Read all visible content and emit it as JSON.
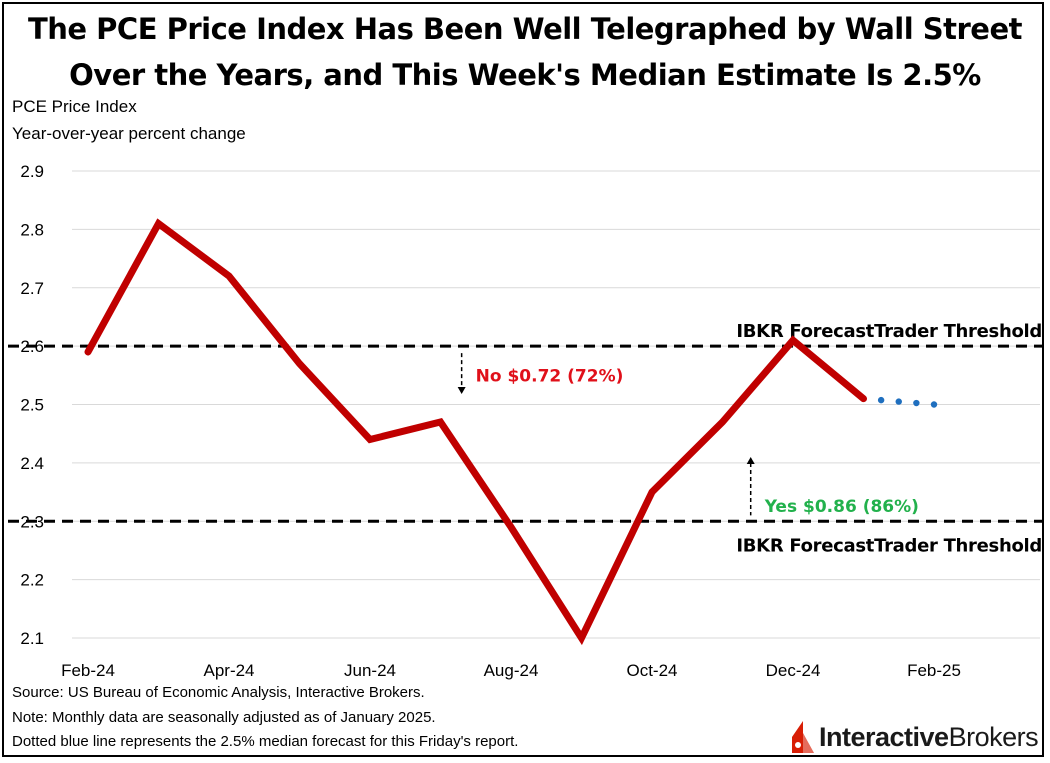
{
  "title_line1": "The PCE Price Index Has Been Well Telegraphed by Wall Street",
  "title_line2": "Over the Years, and This Week's Median Estimate Is 2.5%",
  "subtitle_line1": "PCE Price Index",
  "subtitle_line2": "Year-over-year percent change",
  "notes": {
    "source": "Source: US Bureau of Economic Analysis, Interactive Brokers.",
    "note": "Note: Monthly data are seasonally adjusted as of January 2025.",
    "dotted": "Dotted blue line represents the 2.5% median forecast for this Friday's report."
  },
  "logo": {
    "part1": "Interactive",
    "part2": "Brokers"
  },
  "colors": {
    "actual_line": "#c00000",
    "forecast_dots": "#1f6fbf",
    "no_label": "#e0101a",
    "yes_label": "#22b14c",
    "grid": "#d9d9d9",
    "logo_icon": "#d81e05"
  },
  "chart_data": {
    "type": "line",
    "ylim": [
      2.1,
      2.9
    ],
    "yticks": [
      "2.1",
      "2.2",
      "2.3",
      "2.4",
      "2.5",
      "2.6",
      "2.7",
      "2.8",
      "2.9"
    ],
    "ytick_values": [
      2.1,
      2.2,
      2.3,
      2.4,
      2.5,
      2.6,
      2.7,
      2.8,
      2.9
    ],
    "xtick_labels": [
      "Feb-24",
      "Apr-24",
      "Jun-24",
      "Aug-24",
      "Oct-24",
      "Dec-24",
      "Feb-25"
    ],
    "xtick_month_index": [
      0,
      2,
      4,
      6,
      8,
      10,
      12
    ],
    "series": [
      {
        "name": "PCE Price Index (actual)",
        "style": "solid",
        "x": [
          0,
          1,
          2,
          3,
          4,
          5,
          6,
          7,
          8,
          9,
          10,
          11
        ],
        "values": [
          2.59,
          2.81,
          2.72,
          2.57,
          2.44,
          2.47,
          2.29,
          2.1,
          2.35,
          2.47,
          2.61,
          2.51
        ]
      },
      {
        "name": "Median forecast",
        "style": "dotted",
        "x": [
          11,
          12
        ],
        "values": [
          2.51,
          2.5
        ]
      }
    ],
    "thresholds": [
      {
        "value": 2.6,
        "label": "IBKR ForecastTrader Threshold",
        "position": "above"
      },
      {
        "value": 2.3,
        "label": "IBKR ForecastTrader Threshold",
        "position": "below"
      }
    ],
    "annotations": [
      {
        "text": "No $0.72 (72%)",
        "kind": "no",
        "x": 5.4,
        "y": 2.565,
        "arrow": "down"
      },
      {
        "text": "Yes $0.86 (86%)",
        "kind": "yes",
        "x": 9.5,
        "y": 2.34,
        "arrow": "up"
      }
    ]
  }
}
